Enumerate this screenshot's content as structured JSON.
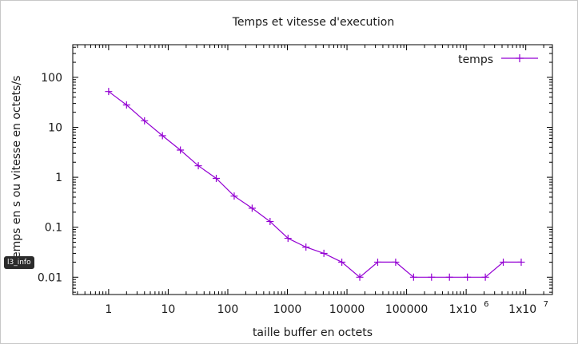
{
  "tooltip": "l3_info",
  "chart_data": {
    "type": "line",
    "title": "Temps et vitesse d'execution",
    "xlabel": "taille buffer en octets",
    "ylabel": "temps en s ou vitesse en octets/s",
    "xscale": "log",
    "yscale": "log",
    "xlim": [
      0.25,
      28000000
    ],
    "ylim": [
      0.0045,
      450
    ],
    "x_ticks": [
      {
        "value": 1,
        "label": "1"
      },
      {
        "value": 10,
        "label": "10"
      },
      {
        "value": 100,
        "label": "100"
      },
      {
        "value": 1000,
        "label": "1000"
      },
      {
        "value": 10000,
        "label": "10000"
      },
      {
        "value": 100000,
        "label": "100000"
      },
      {
        "value": 1000000,
        "label": "1x10"
      },
      {
        "value": 10000000,
        "label": "1x10"
      }
    ],
    "x_tick_exponents": [
      "6",
      "7"
    ],
    "y_ticks": [
      {
        "value": 0.01,
        "label": "0.01"
      },
      {
        "value": 0.1,
        "label": "0.1"
      },
      {
        "value": 1,
        "label": "1"
      },
      {
        "value": 10,
        "label": "10"
      },
      {
        "value": 100,
        "label": "100"
      }
    ],
    "legend_position": "top-right",
    "series": [
      {
        "name": "temps",
        "color": "#9400d3",
        "marker": "plus",
        "points": [
          [
            1,
            52
          ],
          [
            2,
            28
          ],
          [
            4,
            13.5
          ],
          [
            8,
            6.8
          ],
          [
            16,
            3.5
          ],
          [
            32,
            1.7
          ],
          [
            64,
            0.95
          ],
          [
            128,
            0.42
          ],
          [
            256,
            0.24
          ],
          [
            512,
            0.13
          ],
          [
            1024,
            0.06
          ],
          [
            2048,
            0.04
          ],
          [
            4096,
            0.03
          ],
          [
            8192,
            0.02
          ],
          [
            16384,
            0.01
          ],
          [
            32768,
            0.02
          ],
          [
            65536,
            0.02
          ],
          [
            131072,
            0.01
          ],
          [
            262144,
            0.01
          ],
          [
            524288,
            0.01
          ],
          [
            1048576,
            0.01
          ],
          [
            2097152,
            0.01
          ],
          [
            4194304,
            0.02
          ],
          [
            8388608,
            0.02
          ]
        ]
      }
    ]
  }
}
